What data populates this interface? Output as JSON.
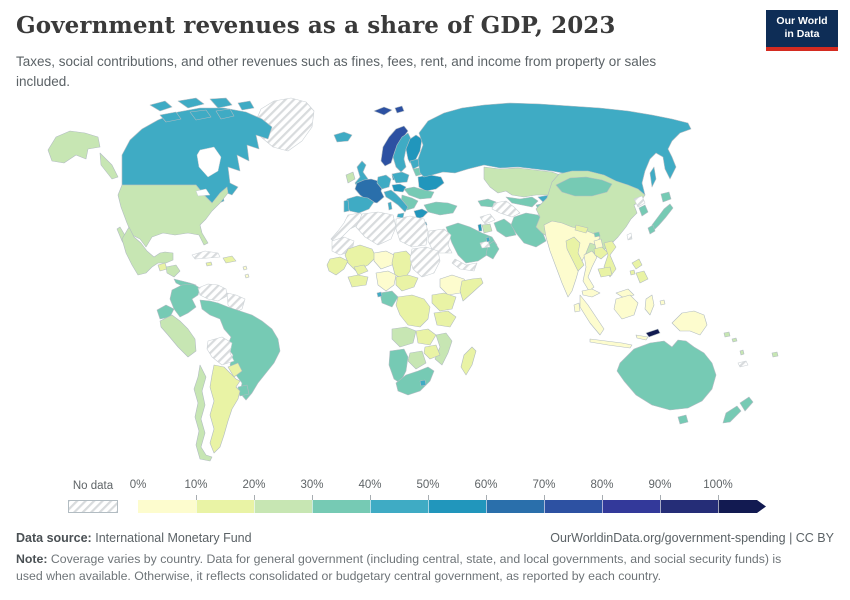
{
  "header": {
    "title": "Government revenues as a share of GDP, 2023",
    "subtitle_line1": "Taxes, social contributions, and other revenues such as fines, fees, rent, and income from property or sales",
    "subtitle_line2": "included."
  },
  "logo": {
    "line1": "Our World",
    "line2": "in Data",
    "bg_color": "#0e2d56",
    "accent_color": "#d42b20"
  },
  "legend": {
    "no_data_label": "No data",
    "ticks": [
      "0%",
      "10%",
      "20%",
      "30%",
      "40%",
      "50%",
      "60%",
      "70%",
      "80%",
      "90%",
      "100%"
    ]
  },
  "footer": {
    "source_label": "Data source:",
    "source_value": "International Monetary Fund",
    "link": "OurWorldinData.org/government-spending | CC BY",
    "note_label": "Note:",
    "note_line1": "Coverage varies by country. Data for general government (including central, state, and local governments, and social security funds) is",
    "note_line2": "used when available. Otherwise, it reflects consolidated or budgetary central government, as reported by each country."
  },
  "chart_data": {
    "type": "choropleth_map",
    "title": "Government revenues as a share of GDP, 2023",
    "unit": "% of GDP",
    "legend_position": "bottom",
    "open_ended_top_bin": true,
    "bins": [
      {
        "id": "no-data",
        "label": "No data",
        "pattern": true
      },
      {
        "id": "0-10",
        "label": "0%",
        "color": "#fdfcce"
      },
      {
        "id": "10-20",
        "label": "10%",
        "color": "#e9f3a5"
      },
      {
        "id": "20-30",
        "label": "20%",
        "color": "#c7e6b3"
      },
      {
        "id": "30-40",
        "label": "30%",
        "color": "#76cab4"
      },
      {
        "id": "40-50",
        "label": "40%",
        "color": "#3fabc4"
      },
      {
        "id": "50-60",
        "label": "50%",
        "color": "#2196bc"
      },
      {
        "id": "60-70",
        "label": "60%",
        "color": "#2a6fab"
      },
      {
        "id": "70-80",
        "label": "70%",
        "color": "#2d51a2"
      },
      {
        "id": "80-90",
        "label": "80%",
        "color": "#33399a"
      },
      {
        "id": "90-100",
        "label": "90%",
        "color": "#252d77"
      },
      {
        "id": "100+",
        "label": "100%",
        "color": "#121a51"
      }
    ],
    "regions": {
      "greenland": {
        "label": "Greenland",
        "bin": "no-data"
      },
      "canada": {
        "label": "Canada",
        "bin": "40-50"
      },
      "united-states": {
        "label": "United States",
        "bin": "20-30"
      },
      "mexico": {
        "label": "Mexico",
        "bin": "20-30"
      },
      "guatemala": {
        "label": "Guatemala",
        "bin": "10-20"
      },
      "honduras-nicaragua": {
        "label": "Honduras / Nicaragua",
        "bin": "20-30"
      },
      "costa-rica-panama": {
        "label": "Costa Rica / Panama",
        "bin": "30-40"
      },
      "cuba": {
        "label": "Cuba",
        "bin": "no-data"
      },
      "hispaniola": {
        "label": "Dominican Republic / Haiti",
        "bin": "10-20"
      },
      "jamaica": {
        "label": "Jamaica",
        "bin": "10-20"
      },
      "lesser-antilles": {
        "label": "Lesser Antilles",
        "bin": "0-10"
      },
      "colombia": {
        "label": "Colombia",
        "bin": "30-40"
      },
      "venezuela": {
        "label": "Venezuela",
        "bin": "no-data"
      },
      "guyana-suriname": {
        "label": "Guyana / Suriname",
        "bin": "no-data"
      },
      "ecuador": {
        "label": "Ecuador",
        "bin": "30-40"
      },
      "peru": {
        "label": "Peru",
        "bin": "20-30"
      },
      "brazil": {
        "label": "Brazil",
        "bin": "30-40"
      },
      "bolivia": {
        "label": "Bolivia",
        "bin": "no-data"
      },
      "paraguay": {
        "label": "Paraguay",
        "bin": "10-20"
      },
      "uruguay": {
        "label": "Uruguay",
        "bin": "30-40"
      },
      "argentina": {
        "label": "Argentina",
        "bin": "10-20"
      },
      "chile": {
        "label": "Chile",
        "bin": "20-30"
      },
      "iceland": {
        "label": "Iceland",
        "bin": "40-50"
      },
      "norway": {
        "label": "Norway",
        "bin": "70-80"
      },
      "sweden": {
        "label": "Sweden",
        "bin": "40-50"
      },
      "finland": {
        "label": "Finland",
        "bin": "50-60"
      },
      "denmark": {
        "label": "Denmark",
        "bin": "50-60"
      },
      "united-kingdom": {
        "label": "United Kingdom",
        "bin": "40-50"
      },
      "ireland": {
        "label": "Ireland",
        "bin": "20-30"
      },
      "france": {
        "label": "France",
        "bin": "60-70"
      },
      "spain": {
        "label": "Spain",
        "bin": "40-50"
      },
      "portugal": {
        "label": "Portugal",
        "bin": "40-50"
      },
      "germany": {
        "label": "Germany",
        "bin": "40-50"
      },
      "poland": {
        "label": "Poland",
        "bin": "40-50"
      },
      "baltics": {
        "label": "Baltic states",
        "bin": "40-50"
      },
      "belarus": {
        "label": "Belarus",
        "bin": "30-40"
      },
      "ukraine": {
        "label": "Ukraine",
        "bin": "50-60"
      },
      "czechia-austria": {
        "label": "Czechia / Austria",
        "bin": "50-60"
      },
      "hungary-romania": {
        "label": "Hungary / Romania",
        "bin": "30-40"
      },
      "balkans": {
        "label": "Balkans",
        "bin": "30-40"
      },
      "greece": {
        "label": "Greece",
        "bin": "50-60"
      },
      "italy": {
        "label": "Italy",
        "bin": "40-50"
      },
      "turkey": {
        "label": "Turkey",
        "bin": "30-40"
      },
      "caucasus": {
        "label": "Caucasus",
        "bin": "30-40"
      },
      "russia": {
        "label": "Russia",
        "bin": "40-50"
      },
      "kazakhstan": {
        "label": "Kazakhstan",
        "bin": "20-30"
      },
      "uzbekistan": {
        "label": "Uzbekistan",
        "bin": "30-40"
      },
      "turkmenistan": {
        "label": "Turkmenistan",
        "bin": "no-data"
      },
      "kyrgyzstan": {
        "label": "Kyrgyzstan",
        "bin": "40-50"
      },
      "tajikistan": {
        "label": "Tajikistan",
        "bin": "30-40"
      },
      "afghanistan": {
        "label": "Afghanistan",
        "bin": "no-data"
      },
      "pakistan": {
        "label": "Pakistan",
        "bin": "0-10"
      },
      "iran": {
        "label": "Iran",
        "bin": "30-40"
      },
      "iraq": {
        "label": "Iraq",
        "bin": "30-40"
      },
      "syria": {
        "label": "Syria",
        "bin": "no-data"
      },
      "israel": {
        "label": "Israel",
        "bin": "50-60"
      },
      "jordan": {
        "label": "Jordan",
        "bin": "20-30"
      },
      "saudi-arabia": {
        "label": "Saudi Arabia",
        "bin": "30-40"
      },
      "yemen": {
        "label": "Yemen",
        "bin": "no-data"
      },
      "oman": {
        "label": "Oman",
        "bin": "30-40"
      },
      "uae": {
        "label": "United Arab Emirates",
        "bin": "no-data"
      },
      "qatar": {
        "label": "Qatar",
        "bin": "40-50"
      },
      "morocco": {
        "label": "Morocco",
        "bin": "no-data"
      },
      "algeria": {
        "label": "Algeria",
        "bin": "no-data"
      },
      "libya": {
        "label": "Libya",
        "bin": "no-data"
      },
      "egypt": {
        "label": "Egypt",
        "bin": "no-data"
      },
      "mauritania": {
        "label": "Mauritania",
        "bin": "no-data"
      },
      "mali": {
        "label": "Mali",
        "bin": "10-20"
      },
      "niger": {
        "label": "Niger",
        "bin": "0-10"
      },
      "chad": {
        "label": "Chad",
        "bin": "10-20"
      },
      "sudan": {
        "label": "Sudan",
        "bin": "no-data"
      },
      "ethiopia": {
        "label": "Ethiopia",
        "bin": "0-10"
      },
      "somalia": {
        "label": "Somalia",
        "bin": "10-20"
      },
      "senegal-guinea": {
        "label": "Senegal / Guinea",
        "bin": "10-20"
      },
      "burkina-faso": {
        "label": "Burkina Faso",
        "bin": "10-20"
      },
      "cote-divoire-ghana": {
        "label": "Côte d'Ivoire / Ghana",
        "bin": "10-20"
      },
      "nigeria": {
        "label": "Nigeria",
        "bin": "0-10"
      },
      "cameroon-car": {
        "label": "Cameroon / Central African Rep.",
        "bin": "10-20"
      },
      "gabon-congo": {
        "label": "Gabon / Congo",
        "bin": "30-40"
      },
      "equatorial-guinea": {
        "label": "Equatorial Guinea",
        "bin": "40-50"
      },
      "dr-congo": {
        "label": "Democratic Republic of Congo",
        "bin": "10-20"
      },
      "uganda-kenya": {
        "label": "Uganda / Kenya",
        "bin": "10-20"
      },
      "tanzania": {
        "label": "Tanzania",
        "bin": "10-20"
      },
      "angola": {
        "label": "Angola",
        "bin": "20-30"
      },
      "zambia": {
        "label": "Zambia",
        "bin": "10-20"
      },
      "mozambique-malawi": {
        "label": "Mozambique / Malawi",
        "bin": "20-30"
      },
      "zimbabwe": {
        "label": "Zimbabwe",
        "bin": "10-20"
      },
      "botswana": {
        "label": "Botswana",
        "bin": "20-30"
      },
      "namibia": {
        "label": "Namibia",
        "bin": "30-40"
      },
      "south-africa": {
        "label": "South Africa",
        "bin": "30-40"
      },
      "lesotho": {
        "label": "Lesotho",
        "bin": "40-50"
      },
      "madagascar": {
        "label": "Madagascar",
        "bin": "10-20"
      },
      "india": {
        "label": "India",
        "bin": "0-10"
      },
      "sri-lanka": {
        "label": "Sri Lanka",
        "bin": "0-10"
      },
      "nepal": {
        "label": "Nepal",
        "bin": "10-20"
      },
      "bhutan": {
        "label": "Bhutan",
        "bin": "30-40"
      },
      "bangladesh": {
        "label": "Bangladesh",
        "bin": "0-10"
      },
      "myanmar": {
        "label": "Myanmar",
        "bin": "10-20"
      },
      "thailand": {
        "label": "Thailand",
        "bin": "0-10"
      },
      "laos": {
        "label": "Laos",
        "bin": "10-20"
      },
      "vietnam": {
        "label": "Vietnam",
        "bin": "10-20"
      },
      "cambodia": {
        "label": "Cambodia",
        "bin": "10-20"
      },
      "malaysia": {
        "label": "Malaysia",
        "bin": "0-10"
      },
      "indonesia": {
        "label": "Indonesia",
        "bin": "0-10"
      },
      "timor-leste": {
        "label": "East Timor",
        "bin": "100+"
      },
      "philippines": {
        "label": "Philippines",
        "bin": "10-20"
      },
      "china": {
        "label": "China",
        "bin": "20-30"
      },
      "mongolia": {
        "label": "Mongolia",
        "bin": "30-40"
      },
      "north-korea": {
        "label": "North Korea",
        "bin": "no-data"
      },
      "south-korea": {
        "label": "South Korea",
        "bin": "30-40"
      },
      "japan": {
        "label": "Japan",
        "bin": "30-40"
      },
      "taiwan": {
        "label": "Taiwan",
        "bin": "no-data"
      },
      "papua-new-guinea": {
        "label": "Papua New Guinea",
        "bin": "0-10"
      },
      "solomon-islands": {
        "label": "Solomon Islands",
        "bin": "20-30"
      },
      "vanuatu": {
        "label": "Vanuatu",
        "bin": "20-30"
      },
      "fiji": {
        "label": "Fiji",
        "bin": "20-30"
      },
      "new-caledonia": {
        "label": "New Caledonia",
        "bin": "no-data"
      },
      "australia": {
        "label": "Australia",
        "bin": "30-40"
      },
      "new-zealand": {
        "label": "New Zealand",
        "bin": "30-40"
      }
    }
  }
}
